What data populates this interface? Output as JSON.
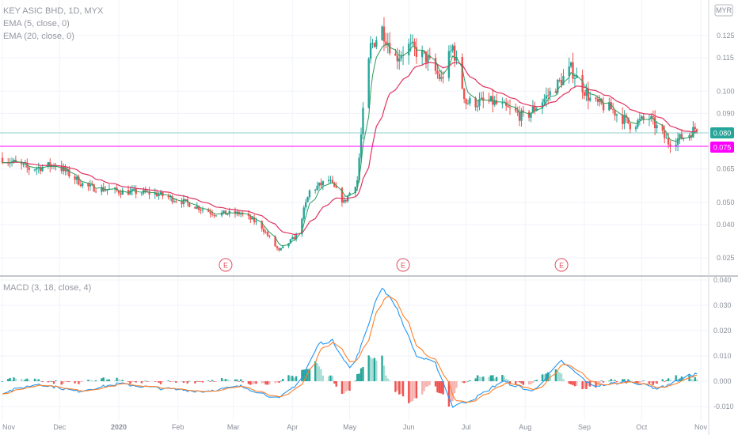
{
  "legend": {
    "main_title": "KEY ASIC BHD, 1D, MYX",
    "ema5": "EMA (5, close, 0)",
    "ema20": "EMA (20, close, 0)",
    "macd": "MACD (3, 18, close, 4)"
  },
  "currency_badge": "MYR",
  "earnings_marker": "E",
  "colors": {
    "up": "#26a69a",
    "down": "#ef5350",
    "ema5": "#2e9c5e",
    "ema20": "#e0325e",
    "macd_line": "#2196f3",
    "signal_line": "#ff7f28",
    "level_line": "#ff00ff",
    "price_tag": "#26a69a"
  },
  "chart_data": [
    {
      "type": "candlestick",
      "title": "KEY ASIC BHD, 1D, MYX",
      "y_ticks": [
        "0.125",
        "0.115",
        "0.100",
        "0.090",
        "0.080",
        "0.075",
        "0.065",
        "0.050",
        "0.040",
        "0.025"
      ],
      "ylim": [
        0.02,
        0.135
      ],
      "current_price": "0.080",
      "horizontal_level": "0.075",
      "earnings_dates": [
        "2020-02-26",
        "2020-05-29",
        "2020-08-20"
      ],
      "x_ticks": [
        "Nov",
        "Dec",
        "2020",
        "Feb",
        "Mar",
        "Apr",
        "May",
        "Jun",
        "Jul",
        "Aug",
        "Sep",
        "Oct",
        "Nov"
      ],
      "x_tick_dates": [
        "2019-11-01",
        "2019-12-01",
        "2020-01-01",
        "2020-02-01",
        "2020-03-01",
        "2020-04-01",
        "2020-05-01",
        "2020-06-01",
        "2020-07-01",
        "2020-08-01",
        "2020-09-01",
        "2020-10-01",
        "2020-11-01"
      ],
      "xlim": [
        "2019-11-01",
        "2020-11-01"
      ],
      "price_path": [
        [
          "2019-11-01",
          0.07
        ],
        [
          "2019-11-15",
          0.065
        ],
        [
          "2019-11-29",
          0.067
        ],
        [
          "2019-12-15",
          0.057
        ],
        [
          "2020-01-01",
          0.055
        ],
        [
          "2020-01-20",
          0.054
        ],
        [
          "2020-02-05",
          0.05
        ],
        [
          "2020-02-20",
          0.045
        ],
        [
          "2020-03-05",
          0.045
        ],
        [
          "2020-03-15",
          0.04
        ],
        [
          "2020-03-25",
          0.028
        ],
        [
          "2020-04-03",
          0.035
        ],
        [
          "2020-04-10",
          0.055
        ],
        [
          "2020-04-20",
          0.06
        ],
        [
          "2020-04-28",
          0.05
        ],
        [
          "2020-05-05",
          0.06
        ],
        [
          "2020-05-08",
          0.09
        ],
        [
          "2020-05-12",
          0.12
        ],
        [
          "2020-05-18",
          0.128
        ],
        [
          "2020-05-25",
          0.115
        ],
        [
          "2020-06-01",
          0.12
        ],
        [
          "2020-06-10",
          0.115
        ],
        [
          "2020-06-18",
          0.105
        ],
        [
          "2020-06-24",
          0.12
        ],
        [
          "2020-07-01",
          0.095
        ],
        [
          "2020-07-15",
          0.095
        ],
        [
          "2020-08-01",
          0.088
        ],
        [
          "2020-08-15",
          0.1
        ],
        [
          "2020-08-25",
          0.11
        ],
        [
          "2020-09-05",
          0.095
        ],
        [
          "2020-09-15",
          0.092
        ],
        [
          "2020-09-25",
          0.085
        ],
        [
          "2020-10-05",
          0.088
        ],
        [
          "2020-10-15",
          0.077
        ],
        [
          "2020-10-25",
          0.08
        ],
        [
          "2020-10-30",
          0.084
        ],
        [
          "2020-11-05",
          0.08
        ]
      ]
    },
    {
      "type": "line",
      "title": "MACD (3, 18, close, 4)",
      "y_ticks": [
        "0.040",
        "0.030",
        "0.020",
        "0.010",
        "0.000",
        "-0.010"
      ],
      "ylim": [
        -0.012,
        0.04
      ],
      "macd_path": [
        [
          "2019-11-01",
          -0.0045
        ],
        [
          "2019-11-20",
          -0.001
        ],
        [
          "2019-12-10",
          -0.004
        ],
        [
          "2020-01-01",
          -0.001
        ],
        [
          "2020-01-25",
          -0.003
        ],
        [
          "2020-02-15",
          -0.004
        ],
        [
          "2020-03-05",
          -0.002
        ],
        [
          "2020-03-25",
          -0.007
        ],
        [
          "2020-04-05",
          0.0
        ],
        [
          "2020-04-15",
          0.015
        ],
        [
          "2020-04-22",
          0.016
        ],
        [
          "2020-05-02",
          0.004
        ],
        [
          "2020-05-10",
          0.02
        ],
        [
          "2020-05-17",
          0.038
        ],
        [
          "2020-05-25",
          0.03
        ],
        [
          "2020-06-05",
          0.01
        ],
        [
          "2020-06-15",
          0.007
        ],
        [
          "2020-06-24",
          -0.01
        ],
        [
          "2020-07-05",
          -0.007
        ],
        [
          "2020-07-20",
          0.0
        ],
        [
          "2020-08-05",
          -0.004
        ],
        [
          "2020-08-20",
          0.008
        ],
        [
          "2020-09-05",
          -0.002
        ],
        [
          "2020-09-25",
          0.0
        ],
        [
          "2020-10-10",
          -0.003
        ],
        [
          "2020-10-25",
          0.002
        ],
        [
          "2020-10-30",
          0.003
        ],
        [
          "2020-11-05",
          0.0
        ]
      ]
    }
  ]
}
